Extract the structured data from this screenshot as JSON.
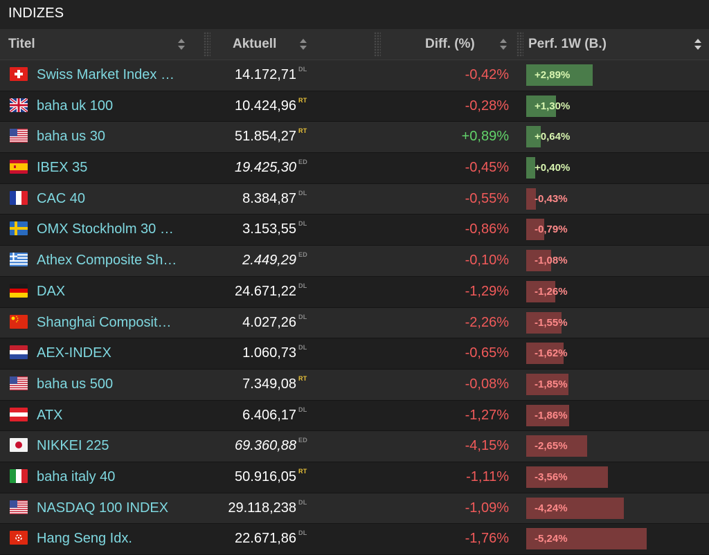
{
  "panel_title": "INDIZES",
  "columns": {
    "titel": "Titel",
    "aktuell": "Aktuell",
    "diff": "Diff. (%)",
    "perf": "Perf. 1W (B.)"
  },
  "perf_scale_max": 5.24,
  "rows": [
    {
      "flag": "ch",
      "name": "Swiss Market Index …",
      "price": "14.172,71",
      "source": "DL",
      "italic": false,
      "diff": "-0,42%",
      "diff_sign": "neg",
      "perf": "+2,89%",
      "perf_value": 2.89
    },
    {
      "flag": "uk",
      "name": "baha uk 100",
      "price": "10.424,96",
      "source": "RT",
      "italic": false,
      "diff": "-0,28%",
      "diff_sign": "neg",
      "perf": "+1,30%",
      "perf_value": 1.3
    },
    {
      "flag": "us",
      "name": "baha us 30",
      "price": "51.854,27",
      "source": "RT",
      "italic": false,
      "diff": "+0,89%",
      "diff_sign": "pos",
      "perf": "+0,64%",
      "perf_value": 0.64
    },
    {
      "flag": "es",
      "name": "IBEX 35",
      "price": "19.425,30",
      "source": "ED",
      "italic": true,
      "diff": "-0,45%",
      "diff_sign": "neg",
      "perf": "+0,40%",
      "perf_value": 0.4
    },
    {
      "flag": "fr",
      "name": "CAC 40",
      "price": "8.384,87",
      "source": "DL",
      "italic": false,
      "diff": "-0,55%",
      "diff_sign": "neg",
      "perf": "-0,43%",
      "perf_value": -0.43
    },
    {
      "flag": "se",
      "name": "OMX Stockholm 30 …",
      "price": "3.153,55",
      "source": "DL",
      "italic": false,
      "diff": "-0,86%",
      "diff_sign": "neg",
      "perf": "-0,79%",
      "perf_value": -0.79
    },
    {
      "flag": "gr",
      "name": "Athex Composite Sh…",
      "price": "2.449,29",
      "source": "ED",
      "italic": true,
      "diff": "-0,10%",
      "diff_sign": "neg",
      "perf": "-1,08%",
      "perf_value": -1.08
    },
    {
      "flag": "de",
      "name": "DAX",
      "price": "24.671,22",
      "source": "DL",
      "italic": false,
      "diff": "-1,29%",
      "diff_sign": "neg",
      "perf": "-1,26%",
      "perf_value": -1.26
    },
    {
      "flag": "cn",
      "name": "Shanghai Composit…",
      "price": "4.027,26",
      "source": "DL",
      "italic": false,
      "diff": "-2,26%",
      "diff_sign": "neg",
      "perf": "-1,55%",
      "perf_value": -1.55
    },
    {
      "flag": "nl",
      "name": "AEX-INDEX",
      "price": "1.060,73",
      "source": "DL",
      "italic": false,
      "diff": "-0,65%",
      "diff_sign": "neg",
      "perf": "-1,62%",
      "perf_value": -1.62
    },
    {
      "flag": "us",
      "name": "baha us 500",
      "price": "7.349,08",
      "source": "RT",
      "italic": false,
      "diff": "-0,08%",
      "diff_sign": "neg",
      "perf": "-1,85%",
      "perf_value": -1.85
    },
    {
      "flag": "at",
      "name": "ATX",
      "price": "6.406,17",
      "source": "DL",
      "italic": false,
      "diff": "-1,27%",
      "diff_sign": "neg",
      "perf": "-1,86%",
      "perf_value": -1.86
    },
    {
      "flag": "jp",
      "name": "NIKKEI 225",
      "price": "69.360,88",
      "source": "ED",
      "italic": true,
      "diff": "-4,15%",
      "diff_sign": "neg",
      "perf": "-2,65%",
      "perf_value": -2.65
    },
    {
      "flag": "it",
      "name": "baha italy 40",
      "price": "50.916,05",
      "source": "RT",
      "italic": false,
      "diff": "-1,11%",
      "diff_sign": "neg",
      "perf": "-3,56%",
      "perf_value": -3.56
    },
    {
      "flag": "us",
      "name": "NASDAQ 100 INDEX",
      "price": "29.118,238",
      "source": "DL",
      "italic": false,
      "diff": "-1,09%",
      "diff_sign": "neg",
      "perf": "-4,24%",
      "perf_value": -4.24
    },
    {
      "flag": "hk",
      "name": "Hang Seng Idx.",
      "price": "22.671,86",
      "source": "DL",
      "italic": false,
      "diff": "-1,76%",
      "diff_sign": "neg",
      "perf": "-5,24%",
      "perf_value": -5.24
    }
  ]
}
